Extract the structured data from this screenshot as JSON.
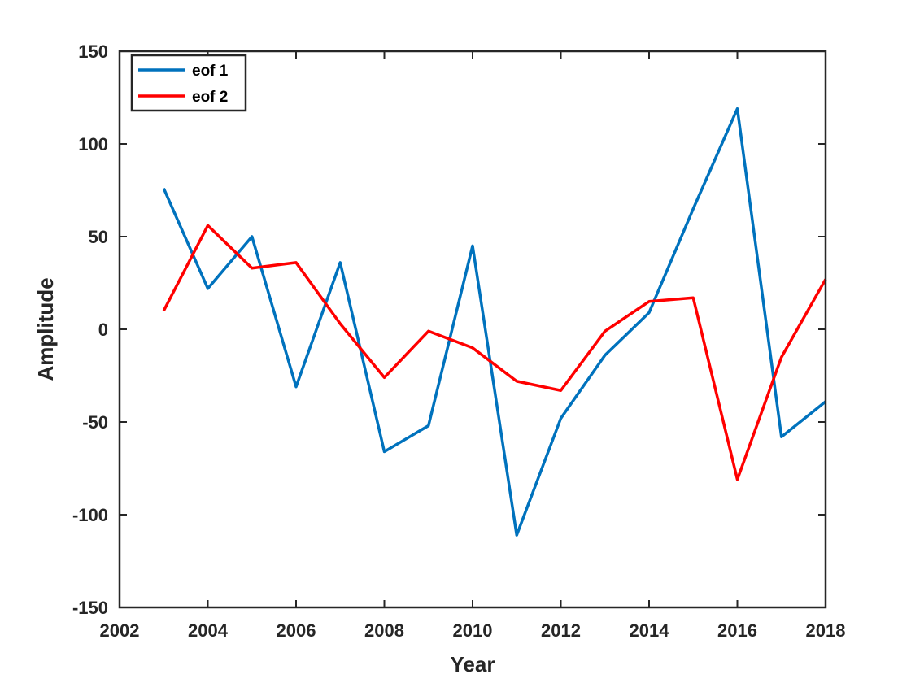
{
  "chart_data": {
    "type": "line",
    "title": "",
    "xlabel": "Year",
    "ylabel": "Amplitude",
    "xlim": [
      2002,
      2018
    ],
    "ylim": [
      -150,
      150
    ],
    "xticks": [
      2002,
      2004,
      2006,
      2008,
      2010,
      2012,
      2014,
      2016,
      2018
    ],
    "yticks": [
      -150,
      -100,
      -50,
      0,
      50,
      100,
      150
    ],
    "xtick_labels": [
      "2002",
      "2004",
      "2006",
      "2008",
      "2010",
      "2012",
      "2014",
      "2016",
      "2018"
    ],
    "ytick_labels": [
      "-150",
      "-100",
      "-50",
      "0",
      "50",
      "100",
      "150"
    ],
    "grid": false,
    "legend_position": "top-left",
    "x": [
      2003,
      2004,
      2005,
      2006,
      2007,
      2008,
      2009,
      2010,
      2011,
      2012,
      2013,
      2014,
      2015,
      2016,
      2017,
      2018
    ],
    "series": [
      {
        "name": "eof 1",
        "color": "#0072BD",
        "values": [
          76,
          22,
          50,
          -31,
          36,
          -66,
          -52,
          45,
          -111,
          -48,
          -14,
          9,
          65,
          119,
          -58,
          -39
        ]
      },
      {
        "name": "eof 2",
        "color": "#FF0000",
        "values": [
          10,
          56,
          33,
          36,
          3,
          -26,
          -1,
          -10,
          -28,
          -33,
          -1,
          15,
          17,
          -81,
          -15,
          27
        ]
      }
    ]
  }
}
